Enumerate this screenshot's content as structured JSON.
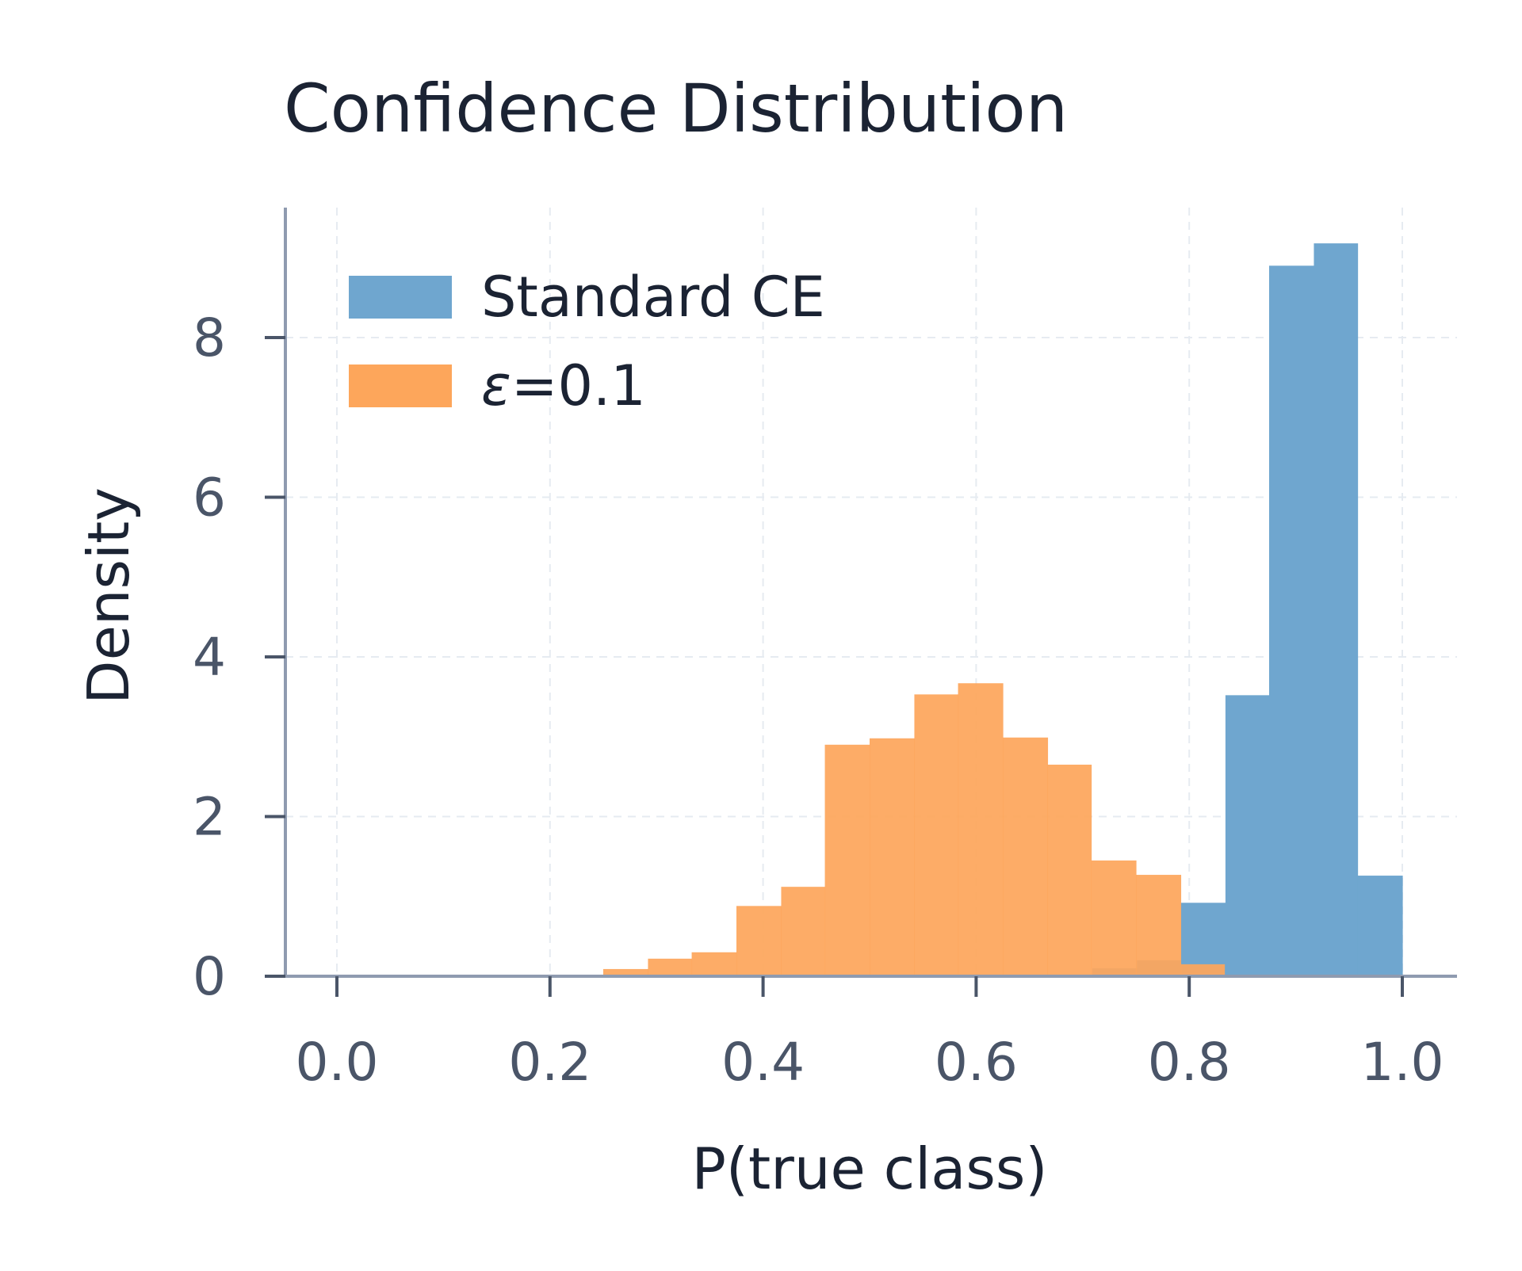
{
  "chart_data": {
    "type": "bar",
    "title": "Confidence Distribution",
    "xlabel": "P(true class)",
    "ylabel": "Density",
    "xlim": [
      -0.025,
      1.025
    ],
    "ylim": [
      0,
      9.6
    ],
    "x_ticks": [
      0.0,
      0.2,
      0.4,
      0.6,
      0.8,
      1.0
    ],
    "x_tick_labels": [
      "0.0",
      "0.2",
      "0.4",
      "0.6",
      "0.8",
      "1.0"
    ],
    "y_ticks": [
      0,
      2,
      4,
      6,
      8
    ],
    "y_tick_labels": [
      "0",
      "2",
      "4",
      "6",
      "8"
    ],
    "grid": true,
    "legend_position": "top-left",
    "series": [
      {
        "name": "Standard CE",
        "color": "#6fa6cf",
        "bins": [
          {
            "x0": 0.709,
            "x1": 0.751,
            "value": 0.1
          },
          {
            "x0": 0.751,
            "x1": 0.792,
            "value": 0.2
          },
          {
            "x0": 0.792,
            "x1": 0.834,
            "value": 0.92
          },
          {
            "x0": 0.834,
            "x1": 0.875,
            "value": 3.52
          },
          {
            "x0": 0.875,
            "x1": 0.917,
            "value": 8.9
          },
          {
            "x0": 0.917,
            "x1": 0.958,
            "value": 9.18
          },
          {
            "x0": 0.958,
            "x1": 1.0,
            "value": 1.26
          }
        ]
      },
      {
        "name": "ε=0.1",
        "legend_prefix": "ε",
        "legend_suffix": "=0.1",
        "color": "#fda65b",
        "bins": [
          {
            "x0": 0.25,
            "x1": 0.292,
            "value": 0.09
          },
          {
            "x0": 0.292,
            "x1": 0.333,
            "value": 0.22
          },
          {
            "x0": 0.333,
            "x1": 0.375,
            "value": 0.3
          },
          {
            "x0": 0.375,
            "x1": 0.417,
            "value": 0.88
          },
          {
            "x0": 0.417,
            "x1": 0.458,
            "value": 1.12
          },
          {
            "x0": 0.458,
            "x1": 0.5,
            "value": 2.9
          },
          {
            "x0": 0.5,
            "x1": 0.542,
            "value": 2.98
          },
          {
            "x0": 0.542,
            "x1": 0.583,
            "value": 3.53
          },
          {
            "x0": 0.583,
            "x1": 0.625,
            "value": 3.67
          },
          {
            "x0": 0.625,
            "x1": 0.667,
            "value": 2.99
          },
          {
            "x0": 0.667,
            "x1": 0.708,
            "value": 2.65
          },
          {
            "x0": 0.708,
            "x1": 0.75,
            "value": 1.45
          },
          {
            "x0": 0.75,
            "x1": 0.792,
            "value": 1.27
          },
          {
            "x0": 0.792,
            "x1": 0.833,
            "value": 0.15
          }
        ]
      }
    ]
  }
}
